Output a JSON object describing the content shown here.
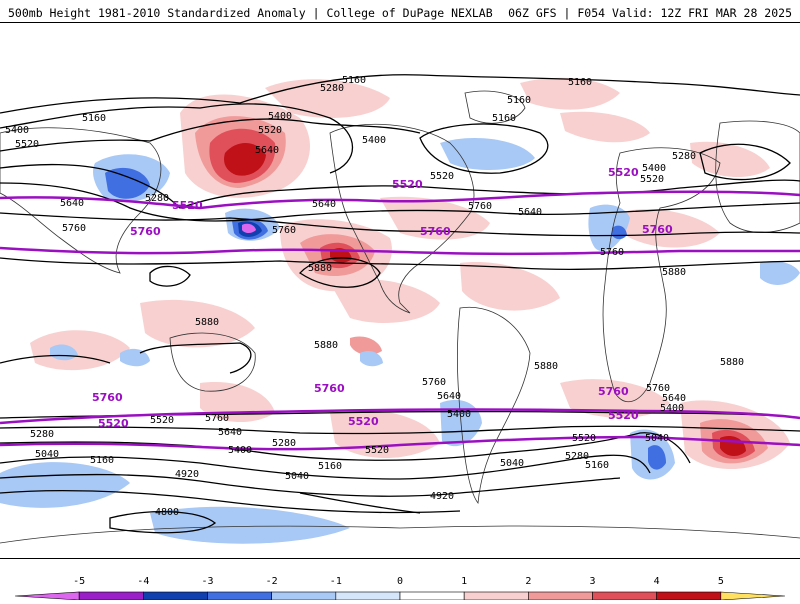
{
  "header": {
    "left": "500mb Height 1981-2010 Standardized Anomaly | College of DuPage NEXLAB",
    "right": "06Z GFS | F054 Valid: 12Z FRI MAR 28 2025"
  },
  "colorbar": {
    "ticks": [
      "-5",
      "-4",
      "-3",
      "-2",
      "-1",
      "0",
      "1",
      "2",
      "3",
      "4",
      "5"
    ],
    "colors": [
      "#dd66ee",
      "#9a1fc8",
      "#1040b0",
      "#3f6fe0",
      "#a8c8f5",
      "#d6e6fa",
      "#ffffff",
      "#f8d0d0",
      "#f09a9a",
      "#e0505a",
      "#c01018",
      "#ffa010",
      "#ffe060"
    ]
  },
  "contour_labels": {
    "c5160": "5160",
    "c5280": "5280",
    "c5400": "5400",
    "c5520": "5520",
    "c5640": "5640",
    "c5760": "5760",
    "c5880": "5880",
    "c5040": "5040",
    "c4920": "4920",
    "c4800": "4800"
  }
}
